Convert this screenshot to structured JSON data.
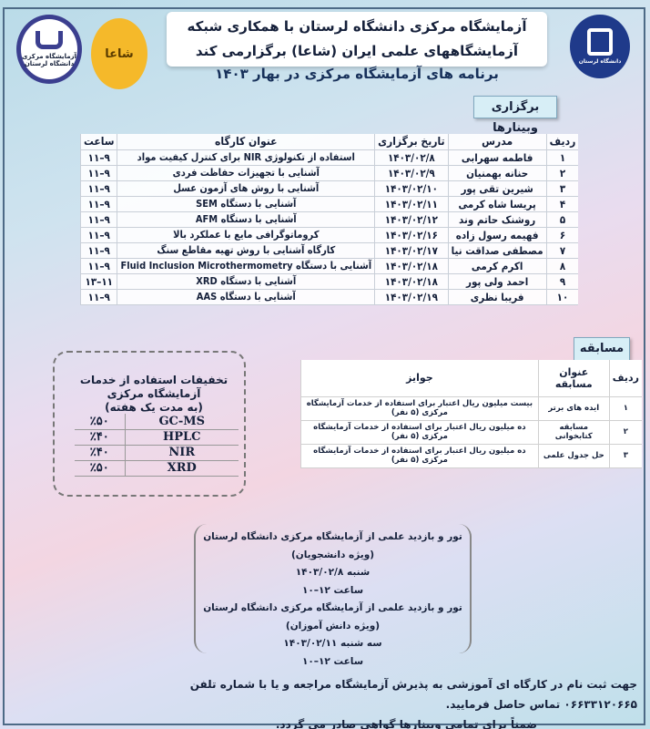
{
  "header": {
    "title_line1": "آزمایشگاه مرکزی دانشگاه لرستان با همکاری شبکه",
    "title_line2": "آزمایشگاههای علمی ایران (شاعا) برگزارمی کند",
    "subtitle": "برنامه های آزمایشگاه مرکزی در بهار ۱۴۰۳",
    "logo_left_text": "آزمایشگاه مرکزی دانشگاه لرستان",
    "logo_middle_text": "شاعا",
    "logo_right_text": "دانشگاه لرستان"
  },
  "webinars": {
    "tab_label": "برگزاری وبینارها",
    "columns": [
      "ردیف",
      "مدرس",
      "تاریخ برگزاری",
      "عنوان کارگاه",
      "ساعت"
    ],
    "rows": [
      [
        "۱",
        "فاطمه سهرابی",
        "۱۴۰۳/۰۲/۸",
        "استفاده از تکنولوژی NIR برای کنترل کیفیت مواد",
        "۹–۱۱"
      ],
      [
        "۲",
        "حنانه بهمنیان",
        "۱۴۰۳/۰۲/۹",
        "آشنایی با تجهیزات حفاظت فردی",
        "۹–۱۱"
      ],
      [
        "۳",
        "شیرین تقی پور",
        "۱۴۰۳/۰۲/۱۰",
        "آشنایی با روش های آزمون عسل",
        "۹–۱۱"
      ],
      [
        "۴",
        "پریسا شاه کرمی",
        "۱۴۰۳/۰۲/۱۱",
        "آشنایی با دستگاه SEM",
        "۹–۱۱"
      ],
      [
        "۵",
        "روشنک حاتم وند",
        "۱۴۰۳/۰۲/۱۲",
        "آشنایی با دستگاه AFM",
        "۹–۱۱"
      ],
      [
        "۶",
        "فهیمه رسول زاده",
        "۱۴۰۳/۰۲/۱۶",
        "کروماتوگرافی مایع با عملکرد بالا",
        "۹–۱۱"
      ],
      [
        "۷",
        "مصطفی صداقت نیا",
        "۱۴۰۳/۰۲/۱۷",
        "کارگاه آشنایی با روش تهیه مقاطع سنگ",
        "۹–۱۱"
      ],
      [
        "۸",
        "اکرم کرمی",
        "۱۴۰۳/۰۲/۱۸",
        "آشنایی با دستگاه Fluid Inclusion Microthermometry",
        "۹–۱۱"
      ],
      [
        "۹",
        "احمد ولی پور",
        "۱۴۰۳/۰۲/۱۸",
        "آشنایی با دستگاه XRD",
        "۱۱–۱۳"
      ],
      [
        "۱۰",
        "فریبا نظری",
        "۱۴۰۳/۰۲/۱۹",
        "آشنایی با دستگاه AAS",
        "۹–۱۱"
      ]
    ]
  },
  "competition": {
    "tab_label": "مسابقه",
    "columns": [
      "ردیف",
      "عنوان مسابقه",
      "جوایز"
    ],
    "rows": [
      [
        "۱",
        "ایده های برتر",
        "بیست میلیون ریال اعتبار برای استفاده از خدمات آزمایشگاه مرکزی (۵ نفر)"
      ],
      [
        "۲",
        "مسابقه کتابخوانی",
        "ده میلیون ریال اعتبار برای استفاده از خدمات آزمایشگاه مرکزی (۵ نفر)"
      ],
      [
        "۳",
        "حل جدول علمی",
        "ده میلیون ریال اعتبار برای استفاده از خدمات آزمایشگاه مرکزی (۵ نفر)"
      ]
    ]
  },
  "discounts": {
    "title": "تخفیفات استفاده از خدمات آزمایشگاه مرکزی",
    "subtitle": "(به مدت یک هفته)",
    "rows": [
      [
        "GC-MS",
        "٪۵۰"
      ],
      [
        "HPLC",
        "٪۴۰"
      ],
      [
        "NIR",
        "٪۴۰"
      ],
      [
        "XRD",
        "٪۵۰"
      ]
    ]
  },
  "tours": [
    "تور و بازدید علمی از آزمایشگاه مرکزی دانشگاه لرستان (ویژه دانشجویان)",
    "شنبه ۱۴۰۳/۰۲/۸",
    "ساعت ۱۲–۱۰",
    "تور و بازدید علمی از آزمایشگاه مرکزی دانشگاه لرستان (ویژه دانش آموزان)",
    "سه شنبه ۱۴۰۳/۰۲/۱۱",
    "ساعت ۱۲–۱۰"
  ],
  "footer": {
    "line1": "جهت ثبت نام در کارگاه ای آموزشی به پذیرش آزمایشگاه مراجعه و یا با شماره تلفن ۰۶۶۳۳۱۲۰۶۶۵ تماس حاصل فرمایید.",
    "line2": "ضمناً برای تمامی وبینارها گواهی صادر می گردد."
  },
  "colors": {
    "frame": "#4d6a86",
    "tab": "#d7eef6",
    "logo_right": "#1f3a8a",
    "logo_middle": "#f5b92a",
    "logo_left": "#3b3f8f"
  }
}
